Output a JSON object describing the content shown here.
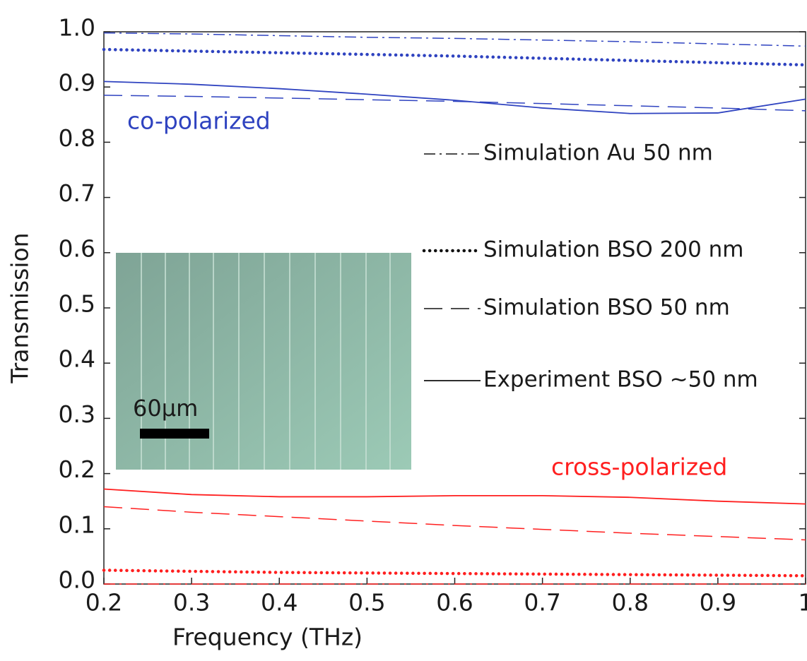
{
  "chart_data": {
    "type": "line",
    "x_label": "Frequency (THz)",
    "y_label": "Transmission",
    "x": [
      0.2,
      0.3,
      0.4,
      0.5,
      0.6,
      0.7,
      0.8,
      0.9,
      1
    ],
    "xlim": [
      0.2,
      1
    ],
    "ylim": [
      0,
      1
    ],
    "xticks": [
      0.2,
      0.3,
      0.4,
      0.5,
      0.6,
      0.7,
      0.8,
      0.9,
      1
    ],
    "yticks": [
      {
        "value": 0,
        "label": "0.0"
      },
      0.1,
      0.2,
      0.3,
      0.4,
      0.5,
      0.6,
      0.7,
      0.8,
      0.9,
      {
        "value": 1,
        "label": "1.0"
      }
    ],
    "groups": [
      {
        "label": "co-polarized",
        "color": "#2f43c0"
      },
      {
        "label": "cross-polarized",
        "color": "#ff1f1f"
      }
    ],
    "series": [
      {
        "name": "Simulation Au 50 nm",
        "dash": "dashdot",
        "values": [
          [
            0.998,
            0.996,
            0.993,
            0.99,
            0.988,
            0.985,
            0.982,
            0.978,
            0.974
          ],
          [
            0,
            0,
            0,
            0,
            0,
            0,
            0,
            0,
            0
          ]
        ]
      },
      {
        "name": "Simulation BSO 200 nm",
        "dash": "dotted",
        "values": [
          [
            0.968,
            0.965,
            0.962,
            0.959,
            0.956,
            0.952,
            0.948,
            0.944,
            0.94
          ],
          [
            0.025,
            0.023,
            0.021,
            0.02,
            0.019,
            0.018,
            0.017,
            0.016,
            0.015
          ]
        ]
      },
      {
        "name": "Simulation BSO 50 nm",
        "dash": "dashed",
        "values": [
          [
            0.885,
            0.883,
            0.88,
            0.877,
            0.874,
            0.87,
            0.866,
            0.862,
            0.857
          ],
          [
            0.14,
            0.13,
            0.122,
            0.114,
            0.106,
            0.099,
            0.092,
            0.086,
            0.08
          ]
        ]
      },
      {
        "name": "Experiment BSO ~50 nm",
        "dash": "solid",
        "values": [
          [
            0.91,
            0.905,
            0.897,
            0.887,
            0.876,
            0.862,
            0.852,
            0.853,
            0.878
          ],
          [
            0.172,
            0.162,
            0.158,
            0.158,
            0.16,
            0.16,
            0.157,
            0.15,
            0.145
          ]
        ]
      }
    ],
    "inset": {
      "scale_label": "60µm"
    }
  }
}
